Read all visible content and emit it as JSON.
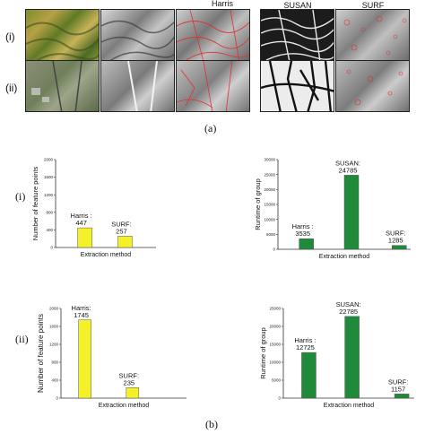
{
  "figure": {
    "part_a_label": "(a)",
    "part_b_label": "(b)",
    "row_labels": [
      "(i)",
      "(ii)"
    ],
    "column_labels": [
      "Harris",
      "SUSAN",
      "SURF"
    ]
  },
  "colors": {
    "yellow_bar": "#f3f12a",
    "green_bar": "#1f8a3a",
    "annotation": "#e23030"
  },
  "chart_data": [
    {
      "id": "i-features",
      "type": "bar",
      "categories": [
        "Harris",
        "SURF"
      ],
      "values": [
        447,
        257
      ],
      "data_labels": [
        "Harris :\n447",
        "SURF:\n257"
      ],
      "xlabel": "Extraction method",
      "ylabel": "Number of feature points",
      "ylim": [
        0,
        2000
      ],
      "yticks": [
        0,
        400,
        800,
        1200,
        1600,
        2000
      ],
      "color": "#f3f12a"
    },
    {
      "id": "i-runtime",
      "type": "bar",
      "categories": [
        "Harris",
        "SUSAN",
        "SURF"
      ],
      "values": [
        3535,
        24785,
        1285
      ],
      "data_labels": [
        "Harris :\n3535",
        "SUSAN:\n24785",
        "SURF:\n1285"
      ],
      "xlabel": "Extraction method",
      "ylabel": "Runtime of group",
      "ylim": [
        0,
        30000
      ],
      "yticks": [
        0,
        5000,
        10000,
        15000,
        20000,
        25000,
        30000
      ],
      "color": "#1f8a3a"
    },
    {
      "id": "ii-features",
      "type": "bar",
      "categories": [
        "Harris",
        "SURF"
      ],
      "values": [
        1745,
        235
      ],
      "data_labels": [
        "Harris:\n1745",
        "SURF:\n235"
      ],
      "xlabel": "Extraction method",
      "ylabel": "Number of feature points",
      "ylim": [
        0,
        2000
      ],
      "yticks": [
        0,
        400,
        800,
        1200,
        1600,
        2000
      ],
      "color": "#f3f12a"
    },
    {
      "id": "ii-runtime",
      "type": "bar",
      "categories": [
        "Harris",
        "SUSAN",
        "SURF"
      ],
      "values": [
        12725,
        22785,
        1157
      ],
      "data_labels": [
        "Harris :\n12725",
        "SUSAN:\n22785",
        "SURF:\n1157"
      ],
      "xlabel": "Extraction method",
      "ylabel": "Runtime of group",
      "ylim": [
        0,
        25000
      ],
      "yticks": [
        0,
        5000,
        10000,
        15000,
        20000,
        25000
      ],
      "color": "#1f8a3a"
    }
  ]
}
